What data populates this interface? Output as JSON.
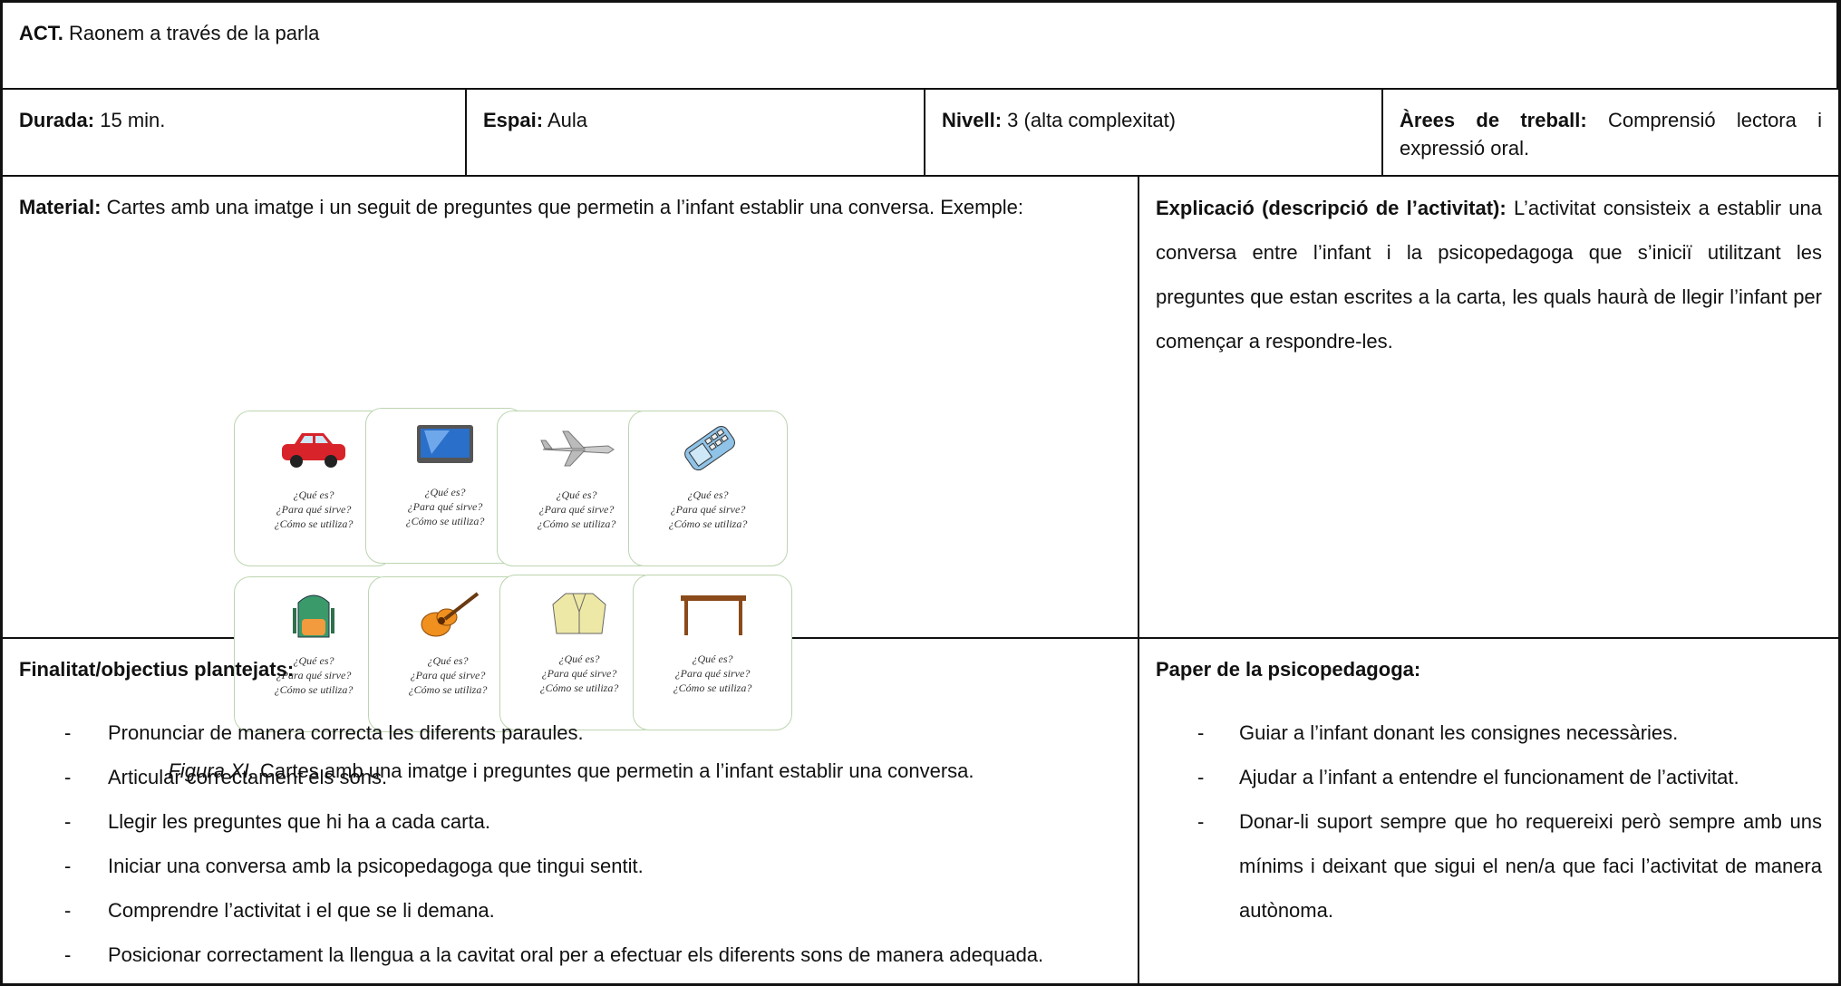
{
  "activity": {
    "label": "ACT.",
    "text": "Raonem a través de la parla"
  },
  "details": [
    {
      "label": "Durada:",
      "text": "15 min."
    },
    {
      "label": "Espai:",
      "text": "Aula"
    },
    {
      "label": "Nivell:",
      "text": "3 (alta complexitat)"
    },
    {
      "label": "Àrees de treball:",
      "text": "Comprensió lectora i expressió oral."
    }
  ],
  "material": {
    "label": "Material:",
    "text": "Cartes amb una imatge i un seguit de preguntes que permetin a l’infant establir una conversa. Exemple:",
    "cards": [
      [
        "¿Qué es?",
        "¿Para qué sirve?",
        "¿Cómo se utiliza?"
      ],
      [
        "¿Qué es?",
        "¿Para qué sirve?",
        "¿Cómo se utiliza?"
      ],
      [
        "¿Qué es?",
        "¿Para qué sirve?",
        "¿Cómo se utiliza?"
      ],
      [
        "¿Qué es?",
        "¿Para qué sirve?",
        "¿Cómo se utiliza?"
      ],
      [
        "¿Qué es?",
        "¿Para qué sirve?",
        "¿Cómo se utiliza?"
      ],
      [
        "¿Qué es?",
        "¿Para qué sirve?",
        "¿Cómo se utiliza?"
      ],
      [
        "¿Qué es?",
        "¿Para qué sirve?",
        "¿Cómo se utiliza?"
      ],
      [
        "¿Qué es?",
        "¿Para qué sirve?",
        "¿Cómo se utiliza?"
      ]
    ],
    "caption": {
      "label": "Figura XI.",
      "text": "Cartes amb una imatge i preguntes que permetin a l’infant establir una conversa."
    }
  },
  "explanation": {
    "label": "Explicació (descripció de l’activitat):",
    "text": "L’activitat consisteix a establir una conversa entre l’infant i la psicopedagoga que s’iniciï utilitzant les preguntes que estan escrites a la carta, les quals haurà de llegir l’infant per començar a respondre-les."
  },
  "objectives": {
    "title": "Finalitat/objectius plantejats:",
    "bullet": "-",
    "items": [
      "Pronunciar de manera correcta les diferents paraules.",
      "Articular correctament els sons.",
      "Llegir les preguntes que hi ha a cada carta.",
      "Iniciar una conversa amb la psicopedagoga que tingui sentit.",
      "Comprendre l’activitat i el que se li demana.",
      "Posicionar correctament la llengua a la cavitat oral per a efectuar els diferents sons de manera adequada."
    ]
  },
  "role": {
    "title": "Paper de la psicopedagoga:",
    "bullet": "-",
    "items": [
      "Guiar a l’infant donant les consignes necessàries.",
      "Ajudar a l’infant a entendre el funcionament de l’activitat.",
      "Donar-li suport sempre que ho requereixi però sempre amb uns mínims i deixant que sigui el nen/a que faci l’activitat de manera autònoma."
    ]
  }
}
